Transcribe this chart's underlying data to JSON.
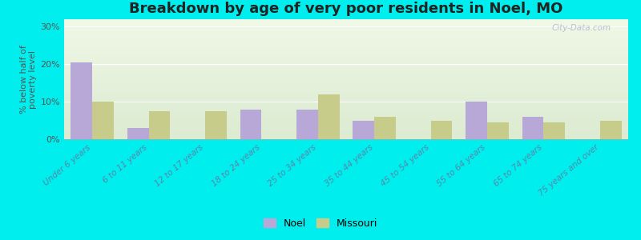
{
  "title": "Breakdown by age of very poor residents in Noel, MO",
  "categories": [
    "Under 6 years",
    "6 to 11 years",
    "12 to 17 years",
    "18 to 24 years",
    "25 to 34 years",
    "35 to 44 years",
    "45 to 54 years",
    "55 to 64 years",
    "65 to 74 years",
    "75 years and over"
  ],
  "noel_values": [
    20.5,
    3.0,
    0.0,
    8.0,
    8.0,
    5.0,
    0.0,
    10.0,
    6.0,
    0.0
  ],
  "missouri_values": [
    10.0,
    7.5,
    7.5,
    0.0,
    12.0,
    6.0,
    5.0,
    4.5,
    4.5,
    5.0
  ],
  "noel_color": "#b8a8d8",
  "missouri_color": "#c8cc8a",
  "background_outer": "#00eeee",
  "ylabel": "% below half of\npoverty level",
  "ylim": [
    0,
    32
  ],
  "yticks": [
    0,
    10,
    20,
    30
  ],
  "ytick_labels": [
    "0%",
    "10%",
    "20%",
    "30%"
  ],
  "bar_width": 0.38,
  "title_fontsize": 13,
  "watermark": "City-Data.com"
}
